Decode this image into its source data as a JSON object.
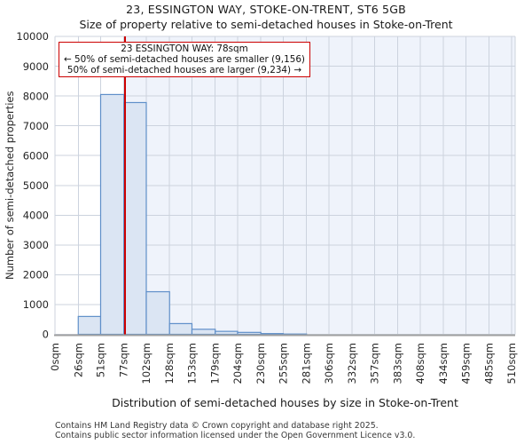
{
  "page": {
    "title": "23, ESSINGTON WAY, STOKE-ON-TRENT, ST6 5GB",
    "subtitle": "Size of property relative to semi-detached houses in Stoke-on-Trent"
  },
  "annotation": {
    "line1": "23 ESSINGTON WAY: 78sqm",
    "line2": "← 50% of semi-detached houses are smaller (9,156)",
    "line3": "50% of semi-detached houses are larger (9,234) →"
  },
  "footer": {
    "line1": "Contains HM Land Registry data © Crown copyright and database right 2025.",
    "line2": "Contains public sector information licensed under the Open Government Licence v3.0."
  },
  "chart_data": {
    "type": "bar",
    "title": "23, ESSINGTON WAY, STOKE-ON-TRENT, ST6 5GB",
    "subtitle": "Size of property relative to semi-detached houses in Stoke-on-Trent",
    "xlabel": "Distribution of semi-detached houses by size in Stoke-on-Trent",
    "ylabel": "Number of semi-detached properties",
    "bin_edges_sqm": [
      0,
      26,
      51,
      77,
      102,
      128,
      153,
      179,
      204,
      230,
      255,
      281,
      306,
      332,
      357,
      383,
      408,
      434,
      459,
      485,
      510
    ],
    "values": [
      0,
      600,
      8050,
      7780,
      1430,
      360,
      170,
      100,
      65,
      25,
      10,
      0,
      0,
      0,
      0,
      0,
      0,
      0,
      0,
      0
    ],
    "x_tick_labels": [
      "0sqm",
      "26sqm",
      "51sqm",
      "77sqm",
      "102sqm",
      "128sqm",
      "153sqm",
      "179sqm",
      "204sqm",
      "230sqm",
      "255sqm",
      "281sqm",
      "306sqm",
      "332sqm",
      "357sqm",
      "383sqm",
      "408sqm",
      "434sqm",
      "459sqm",
      "485sqm",
      "510sqm"
    ],
    "y_ticks": [
      0,
      1000,
      2000,
      3000,
      4000,
      5000,
      6000,
      7000,
      8000,
      9000,
      10000
    ],
    "ylim": [
      0,
      10000
    ],
    "xlim_sqm": [
      0,
      514
    ],
    "grid": true,
    "legend": "none",
    "marker": {
      "value_sqm": 78,
      "label": "23 ESSINGTON WAY: 78sqm",
      "smaller_count": "9,156",
      "larger_count": "9,234",
      "shaded_region_sqm": [
        78,
        514
      ]
    },
    "colors": {
      "bar_fill": "#dbe5f3",
      "bar_edge": "#5f8fc9",
      "shade": "#eff3fb",
      "grid": "#ccd3de",
      "axis_bottom": "#a0a0a0",
      "marker_line": "#cc0000",
      "tick_text": "#262626"
    }
  }
}
